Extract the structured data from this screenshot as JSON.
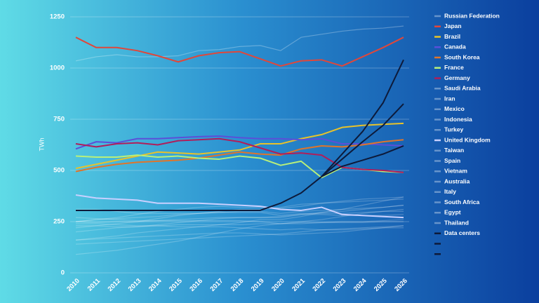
{
  "chart_data": {
    "type": "line",
    "y_label": "TWh",
    "x": [
      2010,
      2011,
      2012,
      2013,
      2014,
      2015,
      2016,
      2017,
      2018,
      2019,
      2020,
      2021,
      2022,
      2023,
      2024,
      2025,
      2026
    ],
    "xlim": [
      2010,
      2026
    ],
    "ylim": [
      0,
      1250
    ],
    "yticks": [
      0,
      250,
      500,
      750,
      1000,
      1250
    ],
    "grid": true,
    "legend": "right",
    "series": [
      {
        "name": "Russian Federation",
        "color": "rgba(255,255,255,0.28)",
        "values": [
          1035,
          1055,
          1065,
          1055,
          1055,
          1060,
          1085,
          1090,
          1105,
          1110,
          1085,
          1150,
          1165,
          1180,
          1190,
          1195,
          1205
        ]
      },
      {
        "name": "Japan",
        "color": "#e0473a",
        "values": [
          1150,
          1100,
          1100,
          1085,
          1060,
          1030,
          1060,
          1075,
          1080,
          1045,
          1010,
          1035,
          1040,
          1010,
          1055,
          1100,
          1150
        ]
      },
      {
        "name": "Brazil",
        "color": "#e8c22a",
        "values": [
          510,
          530,
          550,
          570,
          590,
          585,
          580,
          590,
          600,
          630,
          630,
          655,
          675,
          710,
          720,
          725,
          730
        ]
      },
      {
        "name": "Canada",
        "color": "#5b4fd8",
        "values": [
          605,
          640,
          635,
          655,
          655,
          660,
          665,
          668,
          660,
          655,
          655,
          650,
          655,
          630,
          630,
          625,
          620
        ]
      },
      {
        "name": "South Korea",
        "color": "#e0752a",
        "values": [
          495,
          515,
          530,
          540,
          545,
          550,
          560,
          575,
          590,
          580,
          575,
          605,
          620,
          615,
          625,
          640,
          650
        ]
      },
      {
        "name": "France",
        "color": "#b8f07a",
        "values": [
          570,
          565,
          565,
          575,
          565,
          570,
          560,
          555,
          570,
          560,
          525,
          545,
          465,
          515,
          505,
          495,
          490
        ]
      },
      {
        "name": "Germany",
        "color": "#b01e5a",
        "values": [
          630,
          615,
          630,
          635,
          625,
          645,
          650,
          655,
          640,
          610,
          580,
          585,
          575,
          515,
          505,
          500,
          490
        ]
      },
      {
        "name": "Saudi Arabia",
        "color": "rgba(255,255,255,0.22)",
        "values": [
          250,
          260,
          270,
          285,
          300,
          310,
          320,
          325,
          320,
          320,
          315,
          325,
          340,
          345,
          350,
          355,
          360
        ]
      },
      {
        "name": "Iran",
        "color": "rgba(255,255,255,0.22)",
        "values": [
          220,
          230,
          240,
          250,
          265,
          280,
          290,
          300,
          310,
          310,
          320,
          335,
          340,
          350,
          360,
          365,
          370
        ]
      },
      {
        "name": "Mexico",
        "color": "rgba(255,255,255,0.22)",
        "values": [
          250,
          260,
          265,
          270,
          275,
          285,
          290,
          295,
          300,
          300,
          290,
          300,
          305,
          310,
          315,
          320,
          330
        ]
      },
      {
        "name": "Indonesia",
        "color": "rgba(255,255,255,0.22)",
        "values": [
          160,
          170,
          180,
          195,
          205,
          215,
          225,
          235,
          245,
          260,
          260,
          275,
          295,
          310,
          330,
          350,
          370
        ]
      },
      {
        "name": "Turkey",
        "color": "rgba(255,255,255,0.22)",
        "values": [
          200,
          210,
          220,
          225,
          235,
          245,
          255,
          265,
          270,
          270,
          270,
          285,
          295,
          300,
          310,
          320,
          330
        ]
      },
      {
        "name": "United Kingdom",
        "color": "#c8d0ff",
        "values": [
          380,
          365,
          360,
          355,
          340,
          340,
          340,
          335,
          330,
          325,
          310,
          305,
          320,
          285,
          280,
          275,
          270
        ]
      },
      {
        "name": "Taiwan",
        "color": "rgba(255,255,255,0.22)",
        "values": [
          250,
          245,
          250,
          250,
          255,
          260,
          265,
          270,
          270,
          270,
          275,
          285,
          285,
          280,
          280,
          280,
          285
        ]
      },
      {
        "name": "Spain",
        "color": "rgba(255,255,255,0.22)",
        "values": [
          270,
          265,
          260,
          255,
          255,
          255,
          255,
          255,
          255,
          250,
          240,
          245,
          245,
          245,
          245,
          250,
          250
        ]
      },
      {
        "name": "Vietnam",
        "color": "rgba(255,255,255,0.22)",
        "values": [
          90,
          100,
          110,
          125,
          140,
          155,
          175,
          195,
          215,
          230,
          240,
          250,
          260,
          275,
          290,
          300,
          310
        ]
      },
      {
        "name": "Australia",
        "color": "rgba(255,255,255,0.22)",
        "values": [
          230,
          230,
          225,
          225,
          230,
          235,
          235,
          235,
          235,
          240,
          240,
          240,
          245,
          250,
          250,
          255,
          260
        ]
      },
      {
        "name": "Italy",
        "color": "rgba(255,255,255,0.22)",
        "values": [
          310,
          310,
          300,
          290,
          290,
          290,
          290,
          295,
          295,
          295,
          280,
          290,
          290,
          290,
          295,
          300,
          300
        ]
      },
      {
        "name": "South Africa",
        "color": "rgba(255,255,255,0.22)",
        "values": [
          240,
          240,
          235,
          230,
          230,
          225,
          225,
          225,
          220,
          215,
          210,
          215,
          210,
          210,
          215,
          220,
          220
        ]
      },
      {
        "name": "Egypt",
        "color": "rgba(255,255,255,0.22)",
        "values": [
          140,
          145,
          150,
          155,
          160,
          165,
          170,
          175,
          180,
          185,
          190,
          200,
          210,
          215,
          220,
          225,
          230
        ]
      },
      {
        "name": "Thailand",
        "color": "rgba(255,255,255,0.22)",
        "values": [
          160,
          165,
          170,
          175,
          180,
          185,
          190,
          195,
          195,
          190,
          185,
          190,
          195,
          200,
          210,
          220,
          230
        ]
      },
      {
        "name": "Data centers",
        "color": "#0d1a3a",
        "values": [
          305,
          305,
          305,
          305,
          305,
          305,
          305,
          305,
          305,
          305,
          340,
          390,
          470,
          580,
          690,
          830,
          1040
        ]
      },
      {
        "name": null,
        "color": "#0d1a3a",
        "values": [
          null,
          null,
          null,
          null,
          null,
          null,
          null,
          null,
          null,
          null,
          null,
          null,
          470,
          555,
          640,
          720,
          825
        ]
      },
      {
        "name": null,
        "color": "#0d1a3a",
        "values": [
          null,
          null,
          null,
          null,
          null,
          null,
          null,
          null,
          null,
          null,
          null,
          null,
          470,
          520,
          550,
          580,
          620
        ]
      }
    ]
  }
}
